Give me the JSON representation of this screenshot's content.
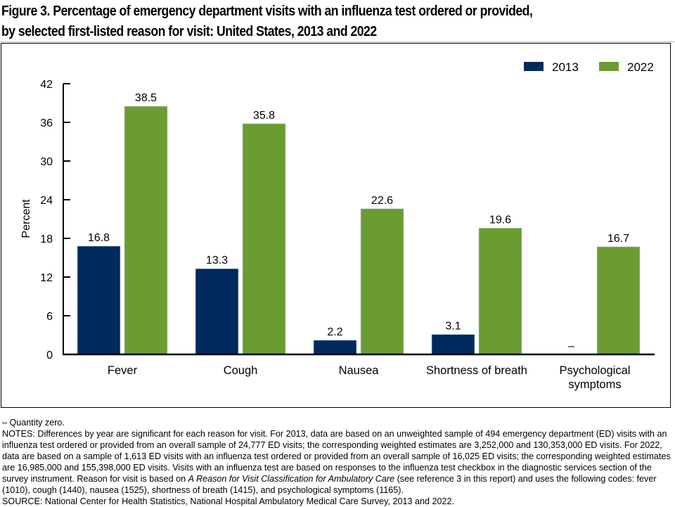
{
  "title_line1": "Figure 3. Percentage of emergency department visits with an influenza test ordered or provided,",
  "title_line2": "by selected first-listed reason for visit: United States, 2013 and 2022",
  "colors": {
    "series_2013": "#002A5C",
    "series_2022": "#6B9C32"
  },
  "chart_data": {
    "type": "bar",
    "title": "Percentage of emergency department visits with an influenza test ordered or provided, by selected first-listed reason for visit: United States, 2013 and 2022",
    "xlabel": "",
    "ylabel": "Percent",
    "ylim": [
      0,
      42
    ],
    "yticks": [
      0,
      6,
      12,
      18,
      24,
      30,
      36,
      42
    ],
    "grid": false,
    "legend": "top-right",
    "categories": [
      "Fever",
      "Cough",
      "Nausea",
      "Shortness of breath",
      "Psychological symptoms"
    ],
    "category_lines": [
      [
        "Fever"
      ],
      [
        "Cough"
      ],
      [
        "Nausea"
      ],
      [
        "Shortness of breath"
      ],
      [
        "Psychological",
        "symptoms"
      ]
    ],
    "series": [
      {
        "name": "2013",
        "values": [
          16.8,
          13.3,
          2.2,
          3.1,
          0
        ],
        "labels": [
          "16.8",
          "13.3",
          "2.2",
          "3.1",
          "–"
        ]
      },
      {
        "name": "2022",
        "values": [
          38.5,
          35.8,
          22.6,
          19.6,
          16.7
        ],
        "labels": [
          "38.5",
          "35.8",
          "22.6",
          "19.6",
          "16.7"
        ]
      }
    ]
  },
  "notes": {
    "footnote": "– Quantity zero.",
    "notes_prefix": "NOTES: Differences by year are significant for each reason for visit. For 2013, data are based on an unweighted sample of 494 emergency department (ED) visits with an influenza test ordered or provided from an overall sample of 24,777 ED visits; the corresponding weighted estimates are 3,252,000 and 130,353,000 ED visits. For 2022, data are based on a sample of 1,613 ED visits with an influenza test ordered or provided from an overall sample of 16,025 ED visits; the corresponding weighted estimates are 16,985,000 and 155,398,000 ED visits. Visits with an influenza test are based on responses to the influenza test checkbox in the diagnostic services section of the survey instrument. Reason for visit is based on ",
    "notes_italic": "A Reason for Visit Classification for Ambulatory Care",
    "notes_suffix": " (see reference 3 in this report) and uses the following codes: fever (1010), cough (1440), nausea (1525), shortness of breath (1415), and psychological symptoms (1165).",
    "source": "SOURCE: National Center for Health Statistics, National Hospital Ambulatory Medical Care Survey, 2013 and 2022."
  }
}
